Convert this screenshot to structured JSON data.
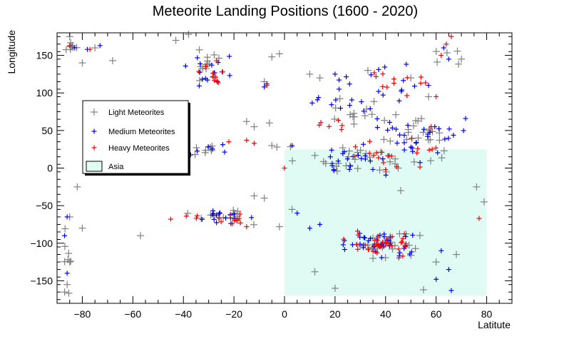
{
  "chart_data": {
    "type": "scatter",
    "title": "Meteorite Landing Positions (1600 - 2020)",
    "xlabel": "Latitute",
    "ylabel": "Longitude",
    "xlim": [
      -90,
      90
    ],
    "ylim": [
      -180,
      180
    ],
    "x_ticks": [
      -80,
      -60,
      -40,
      -20,
      0,
      20,
      40,
      60,
      80
    ],
    "y_ticks": [
      -150,
      -100,
      -50,
      0,
      50,
      100,
      150
    ],
    "grid": false,
    "legend_position": "left",
    "marker": "cross",
    "series": [
      {
        "name": "Light Meteorites",
        "color": "#808080",
        "clusters": [
          {
            "x": -85,
            "y": 160,
            "sx": 2,
            "sy": 4,
            "n": 8
          },
          {
            "x": -30,
            "y": 135,
            "sx": 4,
            "sy": 10,
            "n": 14
          },
          {
            "x": -30,
            "y": 25,
            "sx": 5,
            "sy": 4,
            "n": 8
          },
          {
            "x": -25,
            "y": -65,
            "sx": 7,
            "sy": 5,
            "n": 14
          },
          {
            "x": 25,
            "y": 75,
            "sx": 6,
            "sy": 8,
            "n": 12
          },
          {
            "x": 30,
            "y": 15,
            "sx": 12,
            "sy": 10,
            "n": 28
          },
          {
            "x": 55,
            "y": 35,
            "sx": 8,
            "sy": 15,
            "n": 22
          },
          {
            "x": 40,
            "y": -100,
            "sx": 6,
            "sy": 8,
            "n": 24
          },
          {
            "x": -86,
            "y": -110,
            "sx": 1,
            "sy": 25,
            "n": 8
          },
          {
            "x": 62,
            "y": 155,
            "sx": 3,
            "sy": 10,
            "n": 5
          }
        ],
        "points": [
          [
            -85,
            175
          ],
          [
            -80,
            140
          ],
          [
            -75,
            160
          ],
          [
            -68,
            143
          ],
          [
            -43,
            170
          ],
          [
            -38,
            178
          ],
          [
            -15,
            62
          ],
          [
            -12,
            55
          ],
          [
            -6,
            60
          ],
          [
            -5,
            148
          ],
          [
            -2,
            152
          ],
          [
            -8,
            115
          ],
          [
            -85,
            -125
          ],
          [
            -86,
            -155
          ],
          [
            -87,
            -165
          ],
          [
            -82,
            -25
          ],
          [
            -80,
            -80
          ],
          [
            -57,
            -90
          ],
          [
            10,
            125
          ],
          [
            14,
            120
          ],
          [
            20,
            -160
          ],
          [
            12,
            -138
          ],
          [
            3,
            -55
          ],
          [
            -2,
            -78
          ],
          [
            55,
            -162
          ],
          [
            60,
            -125
          ],
          [
            68,
            -115
          ],
          [
            76,
            -25
          ],
          [
            79,
            -45
          ],
          [
            70,
            145
          ],
          [
            57,
            95
          ],
          [
            -8,
            -40
          ],
          [
            -12,
            -37
          ],
          [
            -5,
            30
          ],
          [
            -3,
            28
          ],
          [
            33,
            130
          ],
          [
            50,
            120
          ],
          [
            45,
            0
          ],
          [
            46,
            -30
          ],
          [
            -85,
            -65
          ]
        ]
      },
      {
        "name": "Medium Meteorites",
        "color": "#0000ff",
        "clusters": [
          {
            "x": -30,
            "y": 130,
            "sx": 4,
            "sy": 10,
            "n": 16
          },
          {
            "x": -25,
            "y": -65,
            "sx": 8,
            "sy": 5,
            "n": 16
          },
          {
            "x": -30,
            "y": 25,
            "sx": 4,
            "sy": 4,
            "n": 6
          },
          {
            "x": 25,
            "y": 85,
            "sx": 8,
            "sy": 12,
            "n": 14
          },
          {
            "x": 30,
            "y": 10,
            "sx": 10,
            "sy": 8,
            "n": 22
          },
          {
            "x": 52,
            "y": 40,
            "sx": 8,
            "sy": 18,
            "n": 30
          },
          {
            "x": 38,
            "y": -100,
            "sx": 7,
            "sy": 9,
            "n": 40
          },
          {
            "x": 40,
            "y": 115,
            "sx": 10,
            "sy": 12,
            "n": 14
          }
        ],
        "points": [
          [
            -83,
            160
          ],
          [
            -78,
            158
          ],
          [
            -73,
            163
          ],
          [
            -86,
            -65
          ],
          [
            -87,
            -90
          ],
          [
            -86,
            -140
          ],
          [
            -8,
            108
          ],
          [
            -7,
            112
          ],
          [
            20,
            125
          ],
          [
            62,
            -110
          ],
          [
            65,
            -135
          ],
          [
            66,
            -163
          ],
          [
            60,
            -148
          ],
          [
            65,
            145
          ],
          [
            63,
            160
          ],
          [
            5,
            -60
          ],
          [
            10,
            -80
          ],
          [
            14,
            -75
          ],
          [
            3,
            30
          ],
          [
            57,
            110
          ]
        ]
      },
      {
        "name": "Heavy Meteorites",
        "color": "#ff0000",
        "clusters": [
          {
            "x": -30,
            "y": 125,
            "sx": 3,
            "sy": 8,
            "n": 10
          },
          {
            "x": -22,
            "y": -68,
            "sx": 7,
            "sy": 4,
            "n": 12
          },
          {
            "x": 20,
            "y": 55,
            "sx": 3,
            "sy": 4,
            "n": 6
          },
          {
            "x": 45,
            "y": 20,
            "sx": 10,
            "sy": 12,
            "n": 20
          },
          {
            "x": 38,
            "y": -102,
            "sx": 6,
            "sy": 7,
            "n": 36
          },
          {
            "x": 42,
            "y": 115,
            "sx": 8,
            "sy": 10,
            "n": 12
          }
        ],
        "points": [
          [
            -85,
            163
          ],
          [
            -77,
            158
          ],
          [
            -7,
            110
          ],
          [
            -15,
            37
          ],
          [
            -12,
            33
          ],
          [
            0,
            0
          ],
          [
            62,
            150
          ],
          [
            64,
            165
          ],
          [
            66,
            175
          ],
          [
            77,
            -67
          ],
          [
            -15,
            -78
          ],
          [
            -45,
            -68
          ],
          [
            -22,
            35
          ],
          [
            60,
            95
          ],
          [
            58,
            55
          ]
        ]
      }
    ],
    "regions": [
      {
        "name": "Asia",
        "x": [
          0,
          80
        ],
        "y": [
          -170,
          25
        ],
        "color": "#e0fbf4"
      }
    ]
  }
}
